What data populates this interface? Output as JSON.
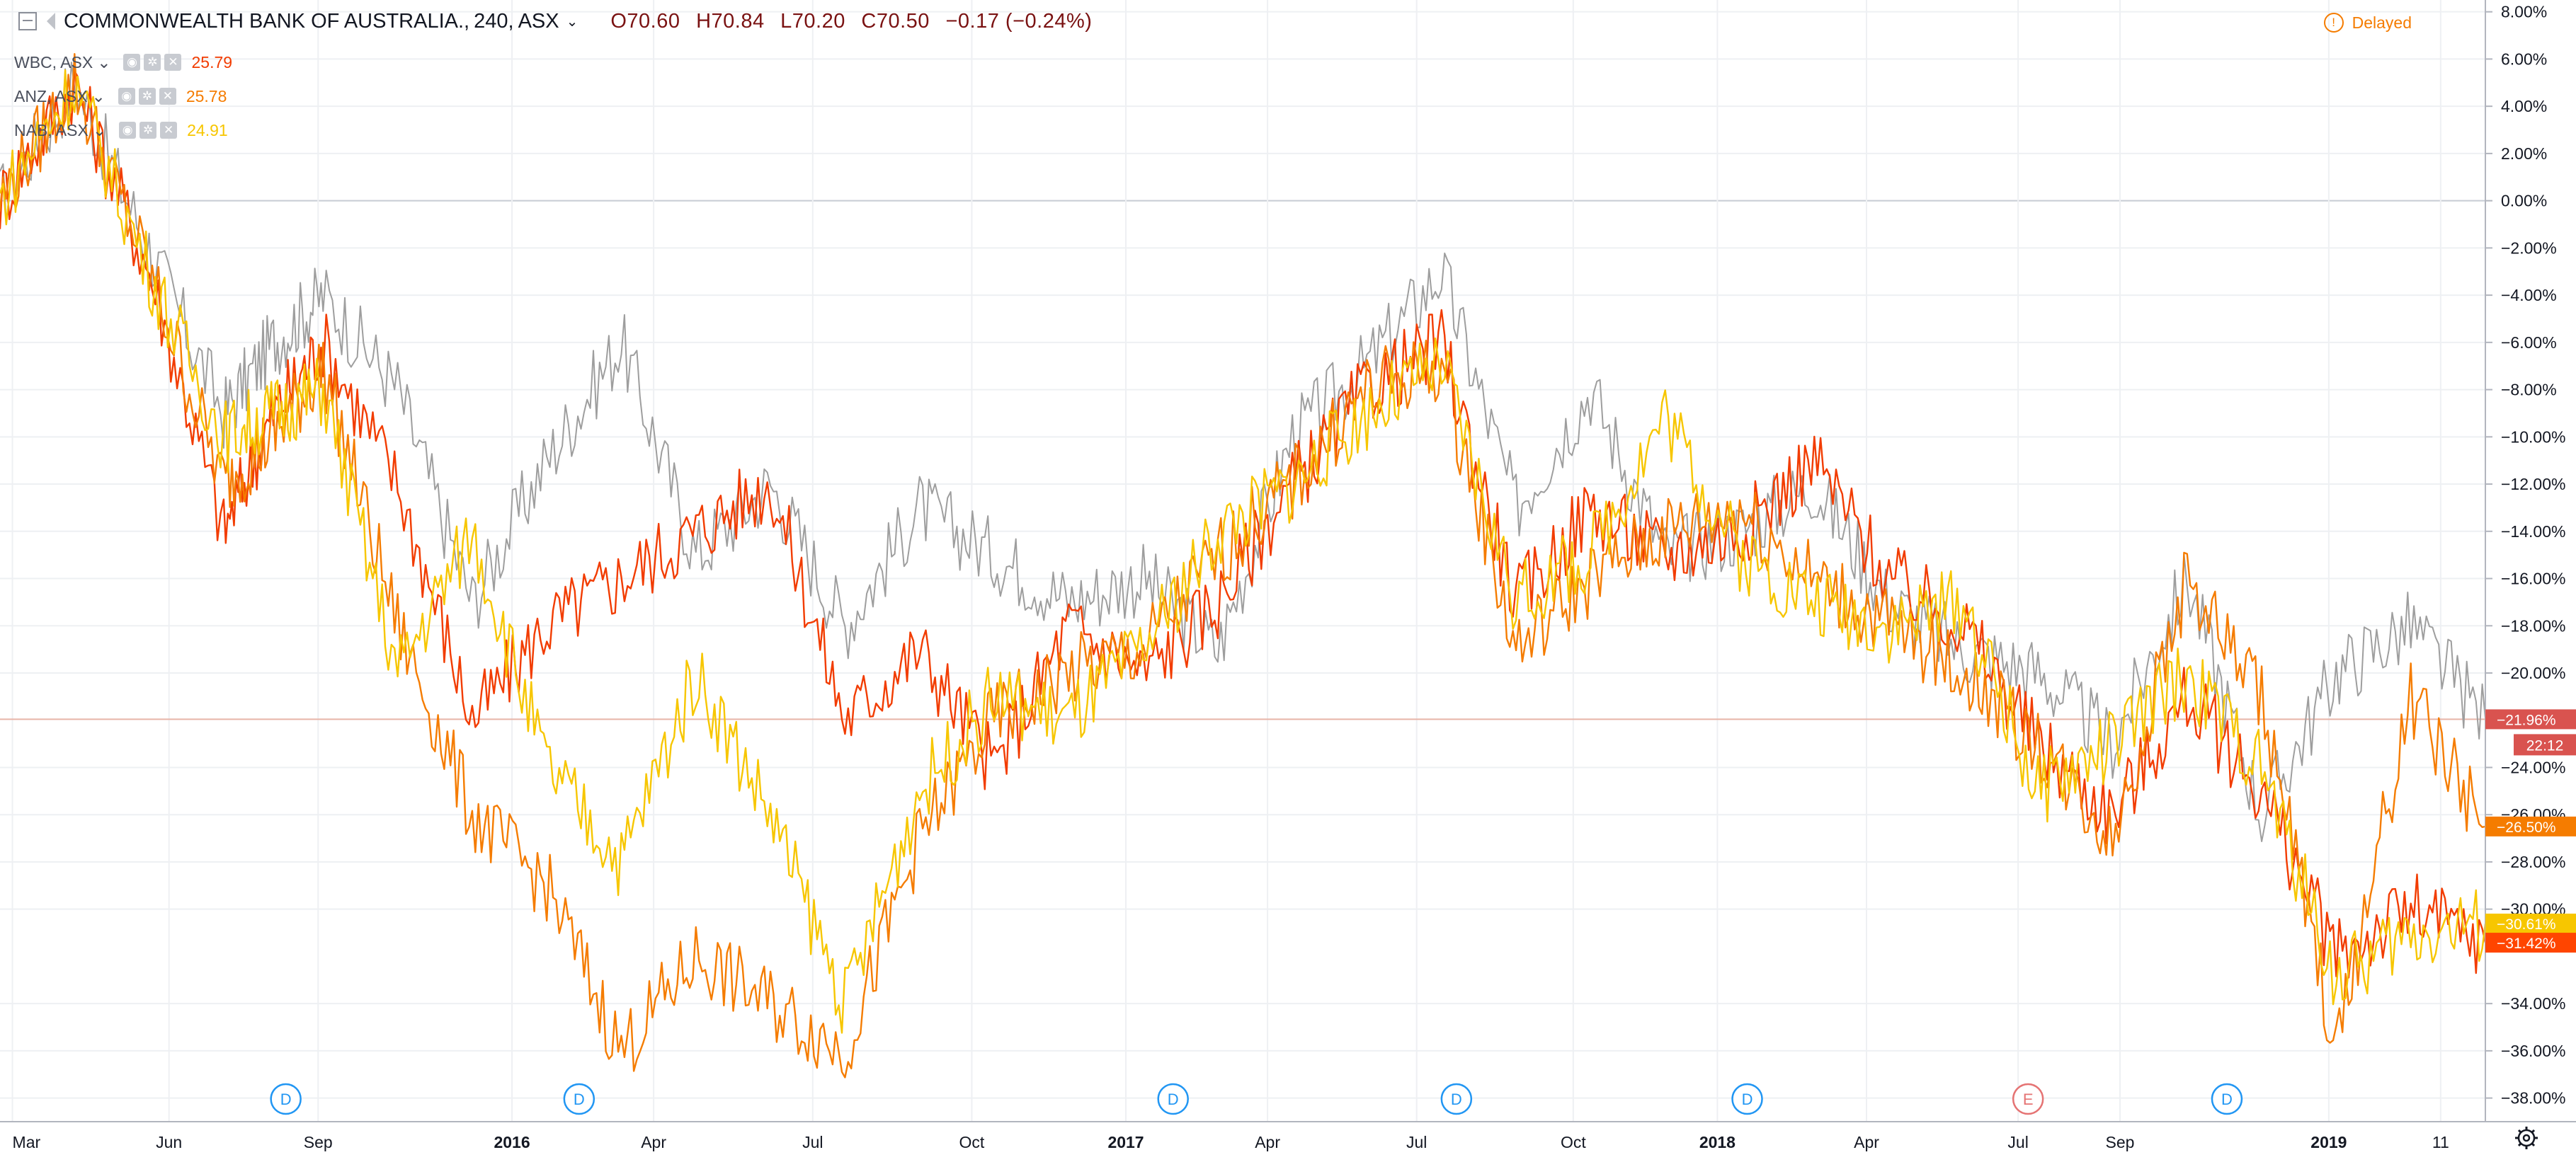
{
  "header": {
    "symbol": "COMMONWEALTH BANK OF AUSTRALIA.",
    "timeframe": "240",
    "exchange": "ASX",
    "ohlc": {
      "o": "O70.60",
      "h": "H70.84",
      "l": "L70.20",
      "c": "C70.50",
      "chg": "−0.17 (−0.24%)"
    },
    "delayed": "Delayed"
  },
  "legend": [
    {
      "name": "WBC, ASX",
      "value": "25.79",
      "color": "#f23c00"
    },
    {
      "name": "ANZ, ASX",
      "value": "25.78",
      "color": "#f57c00"
    },
    {
      "name": "NAB, ASX",
      "value": "24.91",
      "color": "#f7c600"
    }
  ],
  "time_label": "22:12",
  "chart_data": {
    "type": "line",
    "x_ticks": [
      "Mar",
      "Jun",
      "Sep",
      "2016",
      "Apr",
      "Jul",
      "Oct",
      "2017",
      "Apr",
      "Jul",
      "Oct",
      "2018",
      "Apr",
      "Jul",
      "Sep",
      "2019",
      "11"
    ],
    "y_ticks": [
      "8.00%",
      "6.00%",
      "4.00%",
      "2.00%",
      "0.00%",
      "−2.00%",
      "−4.00%",
      "−6.00%",
      "−8.00%",
      "−10.00%",
      "−12.00%",
      "−14.00%",
      "−16.00%",
      "−18.00%",
      "−20.00%",
      "−24.00%",
      "−26.00%",
      "−28.00%",
      "−30.00%",
      "−34.00%",
      "−36.00%",
      "−38.00%"
    ],
    "ylim": [
      -39,
      8.5
    ],
    "x_range": [
      0,
      100
    ],
    "series": [
      {
        "name": "COMMONWEALTH BANK OF AUSTRALIA.",
        "color": "#9e9e9e",
        "last": "−21.96%",
        "x": [
          0,
          3,
          6,
          9,
          11,
          13,
          16,
          19,
          22,
          25,
          28,
          31,
          34,
          37,
          40,
          43,
          46,
          49,
          52,
          55,
          58,
          61,
          64,
          67,
          70,
          73,
          76,
          79,
          82,
          85,
          88,
          91,
          94,
          97,
          100
        ],
        "y": [
          0,
          5,
          -2,
          -9,
          -6,
          -4,
          -8,
          -17,
          -11,
          -6,
          -15,
          -12,
          -18,
          -13,
          -15,
          -17,
          -16,
          -19,
          -10,
          -7,
          -3,
          -13,
          -8,
          -15,
          -14,
          -12,
          -17,
          -19,
          -20,
          -23,
          -16,
          -26,
          -20,
          -18,
          -21.96
        ]
      },
      {
        "name": "WBC, ASX",
        "color": "#f23c00",
        "last": "−31.42%",
        "x": [
          0,
          3,
          6,
          9,
          11,
          13,
          16,
          19,
          22,
          25,
          28,
          31,
          34,
          37,
          40,
          43,
          46,
          49,
          52,
          55,
          58,
          61,
          64,
          67,
          70,
          73,
          76,
          79,
          82,
          85,
          88,
          91,
          94,
          97,
          100
        ],
        "y": [
          0,
          5,
          -3,
          -14,
          -9,
          -6,
          -12,
          -22,
          -18,
          -16,
          -14,
          -12,
          -22,
          -19,
          -24,
          -18,
          -20,
          -17,
          -12,
          -8,
          -6,
          -17,
          -13,
          -15,
          -14,
          -11,
          -16,
          -18,
          -23,
          -26,
          -21,
          -25,
          -32,
          -30,
          -31.42
        ]
      },
      {
        "name": "ANZ, ASX",
        "color": "#f57c00",
        "last": "−26.50%",
        "x": [
          0,
          3,
          6,
          9,
          11,
          13,
          16,
          19,
          22,
          25,
          28,
          31,
          34,
          37,
          40,
          43,
          46,
          49,
          52,
          55,
          58,
          61,
          64,
          67,
          70,
          73,
          76,
          79,
          82,
          85,
          88,
          91,
          94,
          97,
          100
        ],
        "y": [
          0,
          5,
          -3,
          -12,
          -10,
          -7,
          -18,
          -26,
          -29,
          -36,
          -32,
          -34,
          -36,
          -27,
          -22,
          -20,
          -19,
          -15,
          -12,
          -8,
          -7,
          -19,
          -16,
          -14,
          -13,
          -16,
          -18,
          -20,
          -23,
          -27,
          -16,
          -21,
          -36,
          -21,
          -26.5
        ]
      },
      {
        "name": "NAB, ASX",
        "color": "#f7c600",
        "last": "−30.61%",
        "x": [
          0,
          3,
          6,
          9,
          11,
          13,
          16,
          19,
          22,
          25,
          28,
          31,
          34,
          37,
          40,
          43,
          46,
          49,
          52,
          55,
          58,
          61,
          64,
          67,
          70,
          73,
          76,
          79,
          82,
          85,
          88,
          91,
          94,
          97,
          100
        ],
        "y": [
          0,
          5,
          -3,
          -10,
          -9,
          -8,
          -20,
          -14,
          -24,
          -28,
          -20,
          -26,
          -34,
          -25,
          -21,
          -22,
          -19,
          -14,
          -12,
          -9,
          -7,
          -17,
          -15,
          -9,
          -15,
          -17,
          -18,
          -17,
          -25,
          -23,
          -20,
          -24,
          -33,
          -31,
          -30.61
        ]
      }
    ],
    "events": [
      {
        "label": "D",
        "x": 11.5
      },
      {
        "label": "D",
        "x": 23.3
      },
      {
        "label": "D",
        "x": 47.2
      },
      {
        "label": "D",
        "x": 58.6
      },
      {
        "label": "D",
        "x": 70.3
      },
      {
        "label": "E",
        "x": 81.6
      },
      {
        "label": "D",
        "x": 89.6
      }
    ],
    "grid": true
  }
}
